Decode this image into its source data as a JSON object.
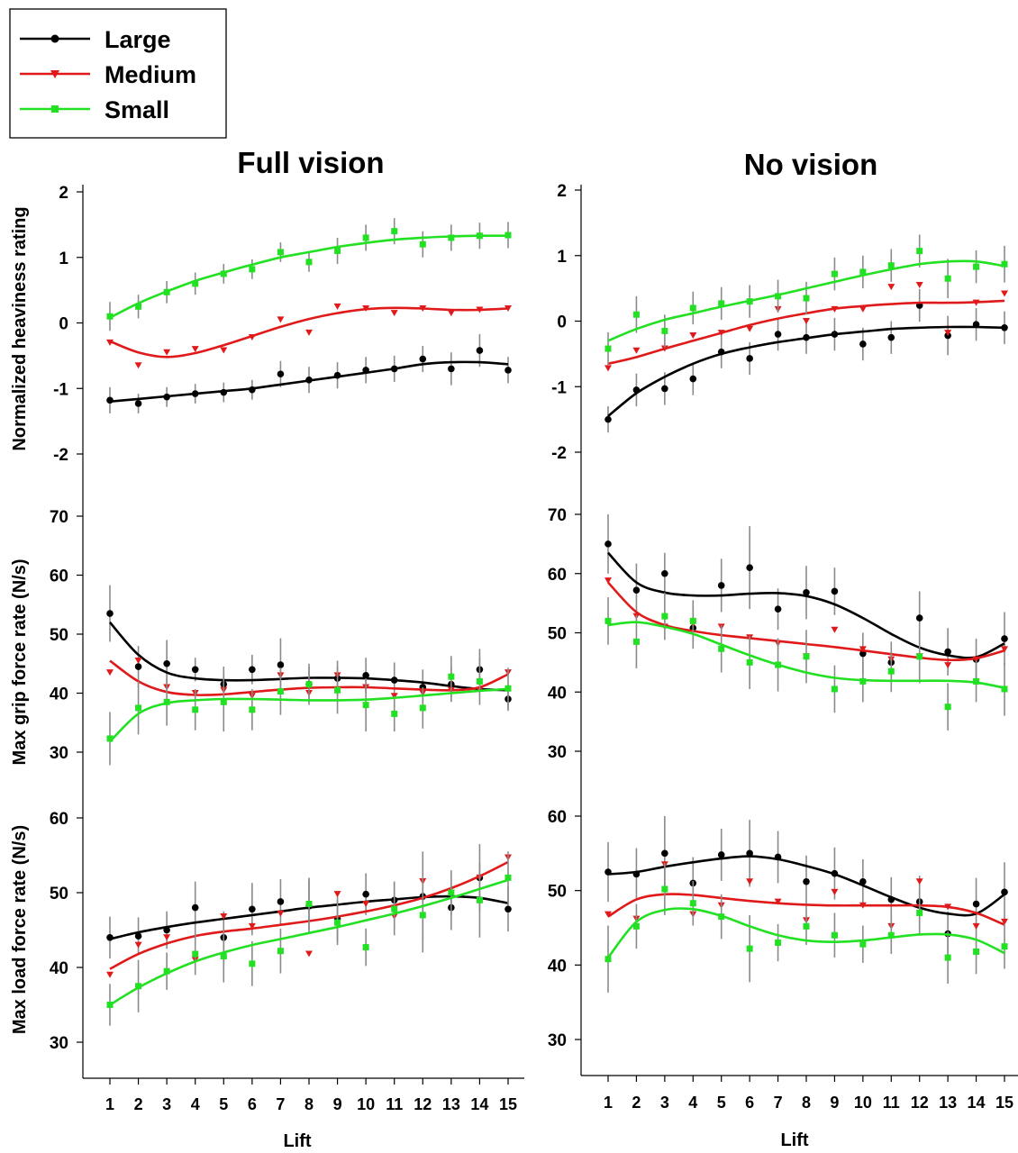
{
  "legend": {
    "entries": [
      {
        "name": "Large",
        "color": "#000000",
        "marker": "circle"
      },
      {
        "name": "Medium",
        "color": "#e01a1a",
        "marker": "triangle-down"
      },
      {
        "name": "Small",
        "color": "#22e022",
        "marker": "square"
      }
    ]
  },
  "columns": [
    {
      "title": "Full vision"
    },
    {
      "title": "No vision"
    }
  ],
  "chart_data": [
    {
      "type": "scatter",
      "column": "Full vision",
      "row": 1,
      "title": "Full vision",
      "xlabel": "Lift",
      "ylabel": "Normalized heaviness rating",
      "ylim": [
        -2,
        2
      ],
      "yticks": [
        -2,
        -1,
        0,
        1,
        2
      ],
      "xlim": [
        0,
        15.8
      ],
      "x": [
        1,
        2,
        3,
        4,
        5,
        6,
        7,
        8,
        9,
        10,
        11,
        12,
        13,
        14,
        15
      ],
      "series": [
        {
          "name": "Large",
          "values": [
            -1.18,
            -1.23,
            -1.13,
            -1.08,
            -1.06,
            -1.02,
            -0.78,
            -0.87,
            -0.8,
            -0.72,
            -0.7,
            -0.55,
            -0.7,
            -0.42,
            -0.72
          ],
          "errors": [
            0.2,
            0.15,
            0.15,
            0.15,
            0.15,
            0.15,
            0.2,
            0.2,
            0.2,
            0.2,
            0.2,
            0.2,
            0.25,
            0.25,
            0.2
          ],
          "fit": [
            -1.2,
            -1.16,
            -1.12,
            -1.08,
            -1.04,
            -1.0,
            -0.94,
            -0.88,
            -0.82,
            -0.76,
            -0.7,
            -0.63,
            -0.6,
            -0.6,
            -0.63
          ]
        },
        {
          "name": "Medium",
          "values": [
            -0.3,
            -0.65,
            -0.45,
            -0.4,
            -0.42,
            -0.22,
            0.05,
            -0.15,
            0.25,
            0.22,
            0.15,
            0.22,
            0.15,
            0.2,
            0.22
          ],
          "errors": [],
          "fit": [
            -0.28,
            -0.45,
            -0.52,
            -0.46,
            -0.34,
            -0.2,
            -0.06,
            0.06,
            0.15,
            0.21,
            0.23,
            0.22,
            0.2,
            0.2,
            0.22
          ]
        },
        {
          "name": "Small",
          "values": [
            0.1,
            0.25,
            0.47,
            0.6,
            0.75,
            0.82,
            1.08,
            0.93,
            1.1,
            1.3,
            1.4,
            1.2,
            1.3,
            1.33,
            1.34
          ],
          "errors": [
            0.22,
            0.18,
            0.17,
            0.17,
            0.15,
            0.15,
            0.15,
            0.15,
            0.2,
            0.2,
            0.2,
            0.2,
            0.2,
            0.2,
            0.2
          ],
          "fit": [
            0.08,
            0.3,
            0.48,
            0.64,
            0.77,
            0.89,
            1.0,
            1.08,
            1.16,
            1.22,
            1.27,
            1.3,
            1.32,
            1.33,
            1.33
          ]
        }
      ]
    },
    {
      "type": "scatter",
      "column": "Full vision",
      "row": 2,
      "ylabel": "Max grip force rate (N/s)",
      "ylim": [
        25,
        75
      ],
      "yticks": [
        30,
        40,
        50,
        60,
        70
      ],
      "xlim": [
        0,
        15.8
      ],
      "x": [
        1,
        2,
        3,
        4,
        5,
        6,
        7,
        8,
        9,
        10,
        11,
        12,
        13,
        14,
        15
      ],
      "series": [
        {
          "name": "Large",
          "values": [
            53.5,
            44.5,
            45,
            44,
            41.5,
            44,
            44.8,
            41.5,
            42.5,
            43,
            42.2,
            41,
            41.5,
            44,
            39
          ],
          "errors": [
            4.8,
            3.5,
            4,
            2,
            3,
            2.5,
            4.5,
            3,
            3,
            3,
            3,
            3,
            3,
            3.5,
            2
          ],
          "fit": [
            52,
            46.5,
            43.5,
            42.5,
            42.2,
            42.2,
            42.4,
            42.6,
            42.6,
            42.5,
            42.2,
            41.8,
            41.2,
            40.7,
            40.5
          ]
        },
        {
          "name": "Medium",
          "values": [
            43.5,
            45.5,
            41,
            40,
            40.5,
            39.5,
            43,
            40,
            43,
            41,
            39.5,
            40,
            40.5,
            40.5,
            43.5
          ],
          "errors": [],
          "fit": [
            45.5,
            42,
            40.2,
            39.7,
            39.8,
            40.2,
            40.6,
            40.9,
            41,
            41,
            40.8,
            40.6,
            40.5,
            41,
            43.2
          ]
        },
        {
          "name": "Small",
          "values": [
            32.3,
            37.5,
            38.5,
            37.2,
            38.5,
            37.2,
            40.3,
            41.5,
            40.5,
            38,
            36.5,
            37.5,
            42.8,
            42,
            40.8
          ],
          "errors": [
            4.5,
            4.5,
            4,
            3.5,
            5,
            3.5,
            4,
            3.5,
            4,
            4.5,
            3,
            3.5,
            3.5,
            4,
            3.5
          ],
          "fit": [
            31.8,
            36.5,
            38.3,
            38.8,
            39,
            39,
            38.9,
            38.8,
            38.8,
            38.9,
            39.2,
            39.6,
            40,
            40.4,
            40.7
          ]
        }
      ]
    },
    {
      "type": "scatter",
      "column": "Full vision",
      "row": 3,
      "xlabel": "Lift",
      "ylabel": "Max load force rate (N/s)",
      "ylim": [
        25,
        65
      ],
      "yticks": [
        30,
        40,
        50,
        60
      ],
      "xlim": [
        0,
        15.8
      ],
      "x": [
        1,
        2,
        3,
        4,
        5,
        6,
        7,
        8,
        9,
        10,
        11,
        12,
        13,
        14,
        15
      ],
      "series": [
        {
          "name": "Large",
          "values": [
            44,
            44.2,
            45,
            48,
            44,
            47.8,
            48.8,
            48.2,
            46.5,
            49.8,
            49,
            49.5,
            48,
            52,
            47.8
          ],
          "errors": [
            2.8,
            2.5,
            2.5,
            3.5,
            3.5,
            3.5,
            3,
            3.5,
            3,
            2.8,
            2.5,
            6,
            3,
            4.5,
            3
          ],
          "fit": [
            43.8,
            44.7,
            45.4,
            46,
            46.5,
            47,
            47.5,
            48,
            48.4,
            48.8,
            49.1,
            49.4,
            49.5,
            49.3,
            48.6
          ]
        },
        {
          "name": "Medium",
          "values": [
            39,
            43,
            44,
            41,
            46.8,
            45.5,
            47.2,
            41.8,
            49.8,
            48.5,
            46.8,
            51.5,
            50,
            52,
            54.7
          ],
          "errors": [],
          "fit": [
            39.8,
            41.8,
            43.2,
            44.2,
            44.8,
            45.2,
            45.7,
            46.2,
            46.8,
            47.5,
            48.3,
            49.3,
            50.6,
            52.2,
            54.1
          ]
        },
        {
          "name": "Small",
          "values": [
            35,
            37.5,
            39.5,
            41.8,
            41.5,
            40.5,
            42.2,
            48.5,
            46,
            42.7,
            47.8,
            47,
            50,
            49,
            52
          ],
          "errors": [
            2.8,
            3.5,
            2.5,
            2.8,
            3.5,
            3,
            3,
            3.5,
            3,
            2.5,
            3.5,
            5,
            3,
            5,
            3.5
          ],
          "fit": [
            35,
            37.3,
            39.2,
            40.8,
            42,
            43,
            43.8,
            44.6,
            45.4,
            46.3,
            47.2,
            48.2,
            49.3,
            50.5,
            51.7
          ]
        }
      ]
    },
    {
      "type": "scatter",
      "column": "No vision",
      "row": 1,
      "title": "No vision",
      "xlabel": "Lift",
      "ylabel": "",
      "ylim": [
        -2,
        2
      ],
      "yticks": [
        -2,
        -1,
        0,
        1,
        2
      ],
      "xlim": [
        0,
        15.8
      ],
      "x": [
        1,
        2,
        3,
        4,
        5,
        6,
        7,
        8,
        9,
        10,
        11,
        12,
        13,
        14,
        15
      ],
      "series": [
        {
          "name": "Large",
          "values": [
            -1.5,
            -1.05,
            -1.03,
            -0.88,
            -0.47,
            -0.57,
            -0.2,
            -0.25,
            -0.2,
            -0.35,
            -0.25,
            0.24,
            -0.22,
            -0.05,
            -0.1
          ],
          "errors": [
            0.2,
            0.25,
            0.25,
            0.25,
            0.25,
            0.25,
            0.25,
            0.25,
            0.25,
            0.25,
            0.25,
            0.25,
            0.3,
            0.25,
            0.25
          ],
          "fit": [
            -1.45,
            -1.1,
            -0.85,
            -0.65,
            -0.5,
            -0.4,
            -0.32,
            -0.26,
            -0.2,
            -0.16,
            -0.12,
            -0.1,
            -0.09,
            -0.09,
            -0.1
          ]
        },
        {
          "name": "Medium",
          "values": [
            -0.72,
            -0.45,
            -0.42,
            -0.22,
            -0.18,
            -0.12,
            0.18,
            0.0,
            0.18,
            0.18,
            0.52,
            0.55,
            -0.18,
            0.28,
            0.42
          ],
          "errors": [],
          "fit": [
            -0.65,
            -0.55,
            -0.42,
            -0.3,
            -0.18,
            -0.06,
            0.04,
            0.12,
            0.19,
            0.23,
            0.26,
            0.28,
            0.28,
            0.29,
            0.31
          ]
        },
        {
          "name": "Small",
          "values": [
            -0.42,
            0.1,
            -0.15,
            0.2,
            0.27,
            0.3,
            0.38,
            0.35,
            0.72,
            0.75,
            0.85,
            1.07,
            0.65,
            0.83,
            0.87
          ],
          "errors": [
            0.25,
            0.28,
            0.25,
            0.25,
            0.25,
            0.25,
            0.25,
            0.25,
            0.25,
            0.25,
            0.25,
            0.25,
            0.3,
            0.25,
            0.28
          ],
          "fit": [
            -0.3,
            -0.12,
            0.02,
            0.12,
            0.22,
            0.31,
            0.4,
            0.5,
            0.6,
            0.7,
            0.79,
            0.87,
            0.91,
            0.91,
            0.84
          ]
        }
      ]
    },
    {
      "type": "scatter",
      "column": "No vision",
      "row": 2,
      "ylabel": "",
      "ylim": [
        25,
        75
      ],
      "yticks": [
        30,
        40,
        50,
        60,
        70
      ],
      "xlim": [
        0,
        15.8
      ],
      "x": [
        1,
        2,
        3,
        4,
        5,
        6,
        7,
        8,
        9,
        10,
        11,
        12,
        13,
        14,
        15
      ],
      "series": [
        {
          "name": "Large",
          "values": [
            65,
            57.2,
            60,
            50.8,
            58,
            61,
            54,
            56.8,
            57,
            46.5,
            45,
            52.5,
            46.8,
            45.5,
            49
          ],
          "errors": [
            5,
            4.5,
            3.5,
            3.5,
            4.5,
            7,
            3.5,
            4.5,
            4,
            3.5,
            3.5,
            4.5,
            4,
            3.5,
            4.5
          ],
          "fit": [
            63.5,
            58.5,
            56.8,
            56.3,
            56.3,
            56.6,
            56.7,
            56.2,
            54.8,
            52.5,
            49.8,
            47.5,
            46.2,
            45.9,
            48.2
          ]
        },
        {
          "name": "Medium",
          "values": [
            58.8,
            52.8,
            51,
            51.5,
            51,
            49.2,
            48.2,
            46,
            50.5,
            47.2,
            45.5,
            46,
            44.5,
            45.5,
            47.2
          ],
          "errors": [],
          "fit": [
            58.5,
            53.5,
            51.3,
            50.3,
            49.6,
            49.1,
            48.6,
            48.1,
            47.6,
            47,
            46.4,
            45.8,
            45.4,
            45.7,
            47
          ]
        },
        {
          "name": "Small",
          "values": [
            52,
            48.5,
            52.8,
            52,
            47.3,
            45,
            44.6,
            46,
            40.5,
            41.8,
            43.5,
            46,
            37.5,
            41.8,
            40.5
          ],
          "errors": [
            4,
            4.5,
            4,
            3.5,
            4,
            4.5,
            4.5,
            4.5,
            4,
            3.5,
            3.5,
            4.5,
            4,
            3.5,
            4.5
          ],
          "fit": [
            51.3,
            51.8,
            51,
            49.8,
            48,
            46.2,
            44.6,
            43.3,
            42.4,
            42,
            41.9,
            41.9,
            41.9,
            41.6,
            40.7
          ]
        }
      ]
    },
    {
      "type": "scatter",
      "column": "No vision",
      "row": 3,
      "xlabel": "Lift",
      "ylabel": "",
      "ylim": [
        25,
        65
      ],
      "yticks": [
        30,
        40,
        50,
        60
      ],
      "xlim": [
        0,
        15.8
      ],
      "x": [
        1,
        2,
        3,
        4,
        5,
        6,
        7,
        8,
        9,
        10,
        11,
        12,
        13,
        14,
        15
      ],
      "series": [
        {
          "name": "Large",
          "values": [
            52.5,
            52.2,
            55,
            51,
            54.8,
            55,
            54.5,
            51.2,
            52.3,
            51.2,
            48.8,
            48.5,
            44.2,
            48.2,
            49.8
          ],
          "errors": [
            4,
            3.5,
            5,
            3.5,
            3.5,
            4.5,
            3.5,
            3.5,
            3.5,
            3,
            3,
            3.5,
            3,
            3.5,
            4
          ],
          "fit": [
            52.2,
            52.5,
            53.2,
            53.8,
            54.3,
            54.6,
            54.2,
            53.3,
            52.2,
            50.7,
            49.1,
            47.7,
            46.9,
            46.9,
            49.5
          ]
        },
        {
          "name": "Medium",
          "values": [
            46.8,
            46.2,
            53.5,
            46.8,
            48,
            51.2,
            48.5,
            46,
            49.8,
            48,
            45.2,
            51.2,
            47.8,
            45.2,
            45.8
          ],
          "errors": [],
          "fit": [
            46.5,
            48.8,
            49.5,
            49.4,
            49,
            48.6,
            48.3,
            48.1,
            48,
            48,
            48,
            48,
            47.8,
            47,
            45.4
          ]
        },
        {
          "name": "Small",
          "values": [
            40.8,
            45.2,
            50.2,
            48.3,
            46.5,
            42.2,
            43,
            45.2,
            44,
            42.8,
            44,
            47,
            41,
            41.8,
            42.5
          ],
          "errors": [
            4.5,
            3,
            3.5,
            3,
            3,
            4.5,
            2.5,
            2.5,
            3,
            2.5,
            2.5,
            3,
            3.5,
            3,
            3
          ],
          "fit": [
            41,
            45.8,
            47.4,
            47.5,
            46.6,
            45.2,
            44,
            43.3,
            43.1,
            43.3,
            43.7,
            44.1,
            44.1,
            43.4,
            41.6
          ]
        }
      ]
    }
  ]
}
